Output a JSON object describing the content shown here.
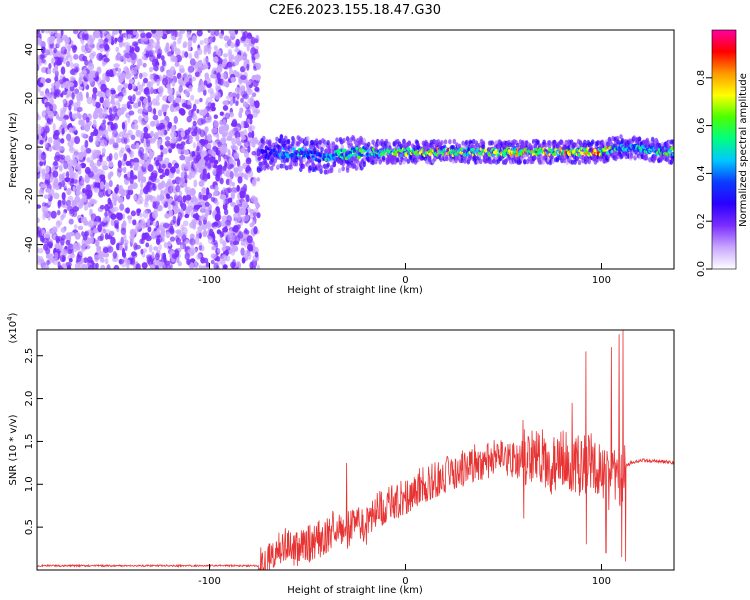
{
  "figure": {
    "title": "C2E6.2023.155.18.47.G30"
  },
  "chart_data": [
    {
      "type": "heatmap",
      "title": "C2E6.2023.155.18.47.G30",
      "xlabel": "Height of straight line (km)",
      "ylabel": "Frequency (Hz)",
      "xlim": [
        -188,
        137
      ],
      "ylim": [
        -50,
        48
      ],
      "x_ticks": [
        -100,
        0,
        100
      ],
      "x_tick_labels": [
        "-100",
        "0",
        "100"
      ],
      "y_ticks": [
        -40,
        -20,
        0,
        20,
        40
      ],
      "y_tick_labels": [
        "-40",
        "-20",
        "0",
        "20",
        "40"
      ],
      "grid": false,
      "colorbar": {
        "label": "Normalized spectral amplitude",
        "range": [
          0,
          1
        ],
        "ticks": [
          0.0,
          0.2,
          0.4,
          0.6,
          0.8
        ],
        "tick_labels": [
          "0.0",
          "0.2",
          "0.4",
          "0.6",
          "0.8"
        ],
        "colormap": [
          "#ffffff",
          "#c9a6ff",
          "#7b2dff",
          "#2a00ff",
          "#0a3cff",
          "#00c8ff",
          "#00ff7f",
          "#4cff00",
          "#ffff00",
          "#ff9900",
          "#ff0000",
          "#ff00a0"
        ]
      },
      "regions": {
        "noise": {
          "x": [
            -188,
            -75
          ],
          "y": [
            -50,
            48
          ],
          "description_amplitude": [
            0.05,
            0.2
          ]
        },
        "signal_ridge": {
          "x": [
            -75,
            -60,
            -40,
            -20,
            0,
            20,
            40,
            60,
            80,
            100,
            110,
            137
          ],
          "freq_center": [
            -3,
            -2,
            -4,
            -2,
            -2,
            -2,
            -2,
            -2,
            -2,
            -2,
            0,
            -2
          ],
          "amplitude": [
            0.3,
            0.45,
            0.5,
            0.6,
            0.7,
            0.75,
            0.7,
            0.75,
            0.8,
            0.85,
            0.5,
            0.6
          ]
        }
      }
    },
    {
      "type": "line",
      "xlabel": "Height of straight line (km)",
      "ylabel": "SNR (10 * v/v)",
      "y_multiplier": "(x10",
      "y_multiplier_exp": "4",
      "y_multiplier_close": ")",
      "xlim": [
        -188,
        137
      ],
      "ylim": [
        0,
        2.8
      ],
      "x_ticks": [
        -100,
        0,
        100
      ],
      "x_tick_labels": [
        "-100",
        "0",
        "100"
      ],
      "y_ticks": [
        0.5,
        1.0,
        1.5,
        2.0,
        2.5
      ],
      "y_tick_labels": [
        "0.5",
        "1.0",
        "1.5",
        "2.0",
        "2.5"
      ],
      "grid": false,
      "series": [
        {
          "color": "#e83333",
          "x": [
            -188,
            -170,
            -150,
            -130,
            -110,
            -90,
            -75,
            -70,
            -65,
            -60,
            -55,
            -50,
            -45,
            -40,
            -35,
            -30,
            -25,
            -20,
            -15,
            -10,
            -5,
            0,
            5,
            10,
            15,
            20,
            25,
            30,
            35,
            40,
            45,
            50,
            55,
            60,
            65,
            70,
            75,
            80,
            85,
            90,
            95,
            100,
            105,
            108,
            110,
            112,
            115,
            120,
            125,
            130,
            137
          ],
          "y": [
            0.05,
            0.05,
            0.05,
            0.05,
            0.05,
            0.05,
            0.05,
            0.1,
            0.25,
            0.3,
            0.25,
            0.3,
            0.35,
            0.4,
            0.55,
            0.45,
            0.6,
            0.5,
            0.7,
            0.75,
            0.8,
            0.85,
            0.95,
            1.0,
            1.05,
            1.1,
            1.15,
            1.2,
            1.25,
            1.25,
            1.3,
            1.3,
            1.28,
            1.3,
            1.35,
            1.3,
            1.2,
            1.3,
            1.25,
            1.2,
            1.3,
            1.1,
            1.0,
            1.2,
            1.0,
            1.2,
            1.25,
            1.28,
            1.27,
            1.27,
            1.25
          ],
          "fluctuation_x": [
            -75,
            112
          ],
          "peaks": [
            {
              "x": -30,
              "y": 1.25
            },
            {
              "x": 60,
              "y": 1.75
            },
            {
              "x": 85,
              "y": 1.95
            },
            {
              "x": 92,
              "y": 2.55
            },
            {
              "x": 105,
              "y": 2.6
            },
            {
              "x": 109,
              "y": 2.75
            },
            {
              "x": 111,
              "y": 2.8
            }
          ],
          "dips": [
            {
              "x": 60,
              "y": 0.6
            },
            {
              "x": 92,
              "y": 0.3
            },
            {
              "x": 102,
              "y": 0.2
            },
            {
              "x": 110,
              "y": 0.15
            },
            {
              "x": 112,
              "y": 0.1
            }
          ]
        }
      ]
    }
  ]
}
